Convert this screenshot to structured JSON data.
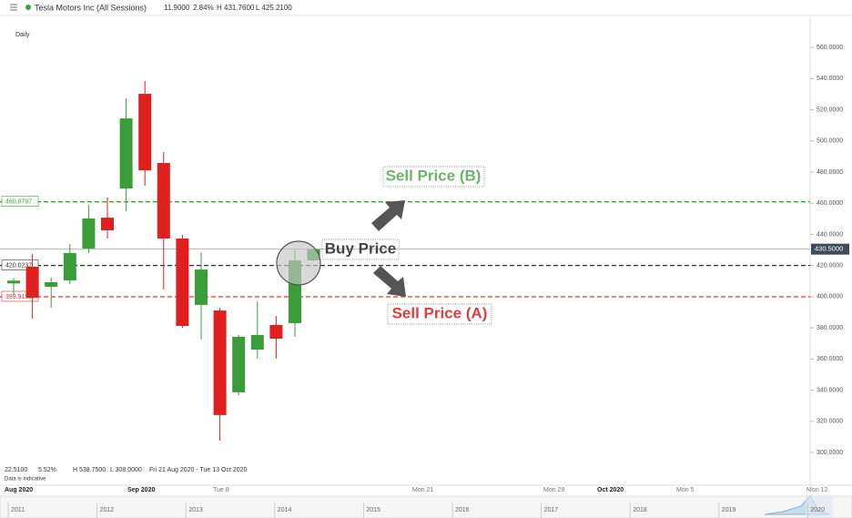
{
  "header": {
    "instrument": "Tesla Motors Inc (All Sessions)",
    "change": "11.9000",
    "change_pct": "2.84%",
    "high": "H 431.7600",
    "low": "L 425.2100"
  },
  "footer": {
    "change": "22.5100",
    "change_pct": "5.52%",
    "high": "H 538.7500",
    "low": "L 308.0000",
    "range": "Fri 21 Aug 2020 - Tue 13 Oct 2020",
    "note": "Data is indicative"
  },
  "chart_data": {
    "type": "candlestick",
    "interval": "Daily",
    "up_color": "#3a9d3a",
    "down_color": "#e0201f",
    "ylim": [
      280.7,
      572.9
    ],
    "yticks": [
      {
        "value": 300,
        "label": "300.0000"
      },
      {
        "value": 320,
        "label": "320.0000"
      },
      {
        "value": 340,
        "label": "340.0000"
      },
      {
        "value": 360,
        "label": "360.0000"
      },
      {
        "value": 380,
        "label": "380.0000"
      },
      {
        "value": 400,
        "label": "400.0000"
      },
      {
        "value": 420,
        "label": "420.0000"
      },
      {
        "value": 440,
        "label": "440.0000"
      },
      {
        "value": 460,
        "label": "460.0000"
      },
      {
        "value": 480,
        "label": "480.0000"
      },
      {
        "value": 500,
        "label": "500.0000"
      },
      {
        "value": 520,
        "label": "520.0000"
      },
      {
        "value": 540,
        "label": "540.0000"
      },
      {
        "value": 560,
        "label": "560.0000"
      }
    ],
    "candles": [
      {
        "open": 408.5,
        "high": 412,
        "low": 401,
        "close": 410.3
      },
      {
        "open": 419.2,
        "high": 427.4,
        "low": 385.9,
        "close": 399.3
      },
      {
        "open": 406.3,
        "high": 412.2,
        "low": 392.9,
        "close": 409.3
      },
      {
        "open": 410.4,
        "high": 433.8,
        "low": 408.1,
        "close": 428
      },
      {
        "open": 430.9,
        "high": 458.9,
        "low": 428,
        "close": 450.2
      },
      {
        "open": 450.7,
        "high": 463.6,
        "low": 437.3,
        "close": 442.6
      },
      {
        "open": 469.4,
        "high": 527.3,
        "low": 454.8,
        "close": 514.4
      },
      {
        "open": 530.2,
        "high": 538.4,
        "low": 471.2,
        "close": 481.1
      },
      {
        "open": 485.8,
        "high": 492.8,
        "low": 404.6,
        "close": 437.3
      },
      {
        "open": 437.3,
        "high": 439.6,
        "low": 380,
        "close": 381.2
      },
      {
        "open": 394.7,
        "high": 428.5,
        "low": 372.5,
        "close": 417.4
      },
      {
        "open": 391.1,
        "high": 392.9,
        "low": 307.6,
        "close": 324
      },
      {
        "open": 338.6,
        "high": 375.4,
        "low": 336.8,
        "close": 374.2
      },
      {
        "open": 366,
        "high": 397,
        "low": 360.2,
        "close": 375.4
      },
      {
        "open": 381.8,
        "high": 387.6,
        "low": 360.2,
        "close": 373
      },
      {
        "open": 383,
        "high": 429.7,
        "low": 374.2,
        "close": 423.3
      },
      {
        "open": 423.3,
        "high": 431.5,
        "low": 422.7,
        "close": 430.3
      }
    ],
    "levels": [
      {
        "value": 460.8797,
        "color": "#3aa63a"
      },
      {
        "value": 420.0237,
        "color": "#333333"
      },
      {
        "value": 399.9199,
        "color": "#e03030"
      }
    ],
    "last_price": {
      "value": 430.5,
      "label": "430.5000"
    },
    "annotations": [
      "Sell Price (B)",
      "Buy Price",
      "Sell Price (A)"
    ],
    "time_labels": [
      "Aug 2020",
      "Sep 2020",
      "Tue 8",
      "Mon 21",
      "Mon 28",
      "Oct 2020",
      "Mon 5",
      "Mon 12"
    ],
    "navigator_labels": [
      "2011",
      "2012",
      "2013",
      "2014",
      "2015",
      "2016",
      "2017",
      "2018",
      "2019",
      "2020"
    ]
  }
}
